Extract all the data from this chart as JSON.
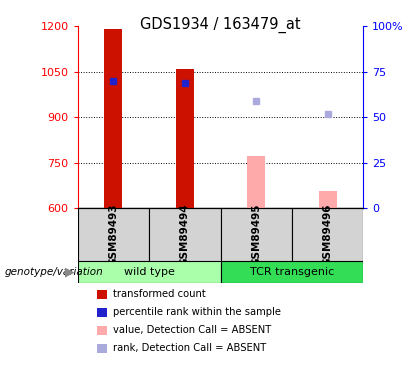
{
  "title": "GDS1934 / 163479_at",
  "samples": [
    "GSM89493",
    "GSM89494",
    "GSM89495",
    "GSM89496"
  ],
  "groups": [
    {
      "name": "wild type",
      "color": "#aaffaa",
      "samples": [
        0,
        1
      ]
    },
    {
      "name": "TCR transgenic",
      "color": "#33dd55",
      "samples": [
        2,
        3
      ]
    }
  ],
  "ylim": [
    600,
    1200
  ],
  "yticks": [
    600,
    750,
    900,
    1050,
    1200
  ],
  "y2ticks_pct": [
    0,
    25,
    50,
    75,
    100
  ],
  "bar_width": 0.25,
  "bar_color_present": "#cc1100",
  "bar_color_absent": "#ffaaaa",
  "rank_color_present": "#2222cc",
  "rank_color_absent": "#aaaadd",
  "transformed_counts": [
    1190,
    1058,
    772,
    655
  ],
  "percentile_ranks": [
    1018,
    1012,
    null,
    null
  ],
  "absent_rank_values": [
    null,
    null,
    952,
    912
  ],
  "is_absent": [
    false,
    false,
    true,
    true
  ],
  "legend_items": [
    {
      "color": "#cc1100",
      "label": "transformed count"
    },
    {
      "color": "#2222cc",
      "label": "percentile rank within the sample"
    },
    {
      "color": "#ffaaaa",
      "label": "value, Detection Call = ABSENT"
    },
    {
      "color": "#aaaadd",
      "label": "rank, Detection Call = ABSENT"
    }
  ],
  "genotype_label": "genotype/variation",
  "bar_base": 600,
  "grid_lines": [
    750,
    900,
    1050
  ],
  "sample_box_color": "#d3d3d3",
  "group_light_green": "#aaffaa",
  "group_dark_green": "#33dd55"
}
